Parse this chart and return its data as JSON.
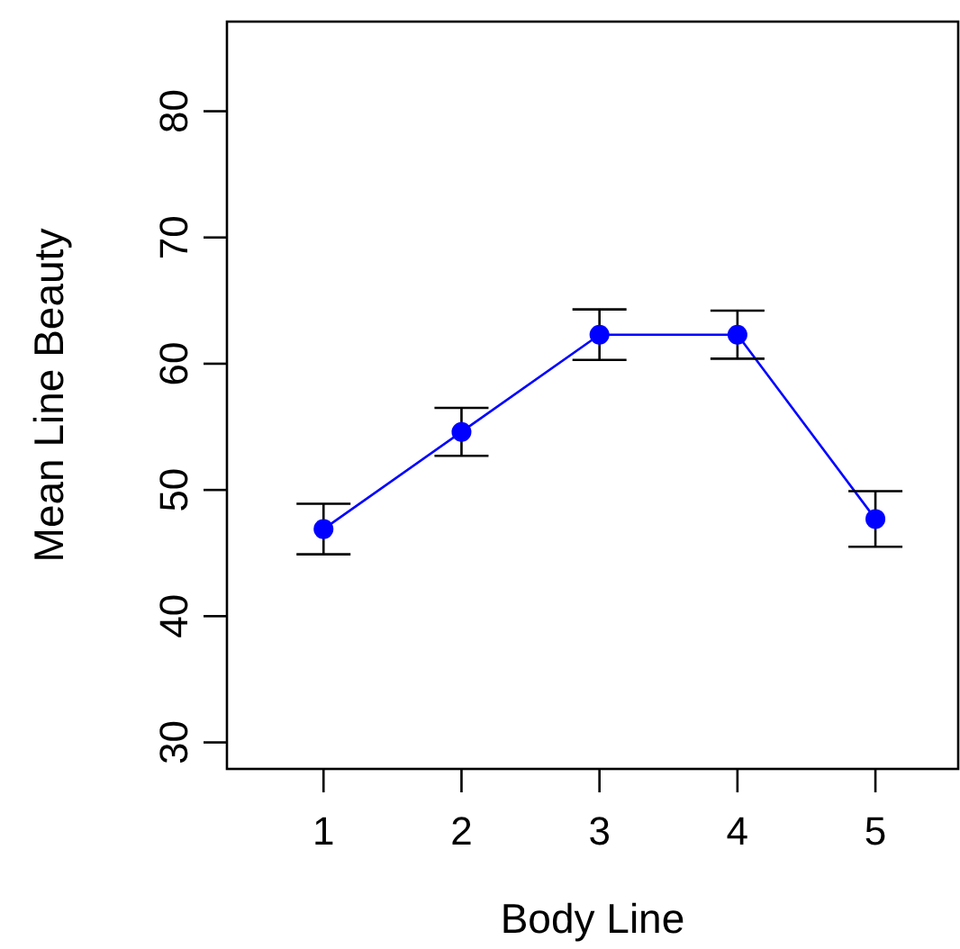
{
  "chart_data": {
    "type": "line",
    "xlabel": "Body Line",
    "ylabel": "Mean Line Beauty",
    "x": [
      1,
      2,
      3,
      4,
      5
    ],
    "xlim": [
      0.3,
      5.6
    ],
    "xticks": [
      1,
      2,
      3,
      4,
      5
    ],
    "ylim": [
      27.9,
      87.1
    ],
    "yticks": [
      30,
      40,
      50,
      60,
      70,
      80
    ],
    "grid": false,
    "marker": "circle",
    "line_style": "solid",
    "series": [
      {
        "color": "#0000ff",
        "values": [
          46.9,
          54.6,
          62.3,
          62.3,
          47.7
        ],
        "errors": [
          2.0,
          1.9,
          2.0,
          1.9,
          2.2
        ]
      }
    ]
  }
}
